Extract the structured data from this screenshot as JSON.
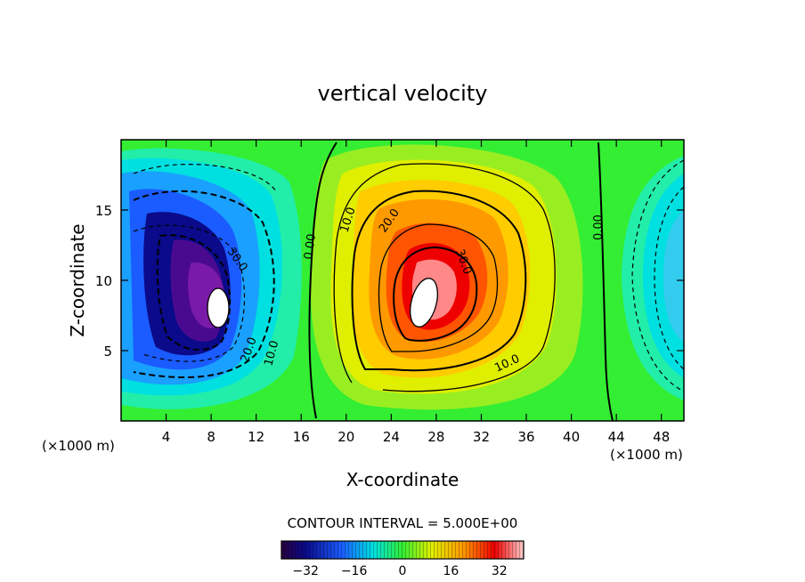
{
  "chart_data": {
    "type": "heatmap",
    "title": "vertical velocity",
    "xlabel": "X-coordinate",
    "ylabel": "Z-coordinate",
    "x_unit_left": "(×1000 m)",
    "x_unit_right": "(×1000 m)",
    "xlim": [
      0,
      50
    ],
    "ylim": [
      0,
      20
    ],
    "x_ticks": [
      4,
      8,
      12,
      16,
      20,
      24,
      28,
      32,
      36,
      40,
      44,
      48
    ],
    "y_ticks": [
      5,
      10,
      15
    ],
    "contour_interval_text": "CONTOUR INTERVAL = 5.000E+00",
    "colorbar": {
      "range": [
        -40,
        40
      ],
      "ticks": [
        -32,
        -16,
        0,
        16,
        32
      ],
      "tick_labels": [
        "−32",
        "−16",
        "0",
        "16",
        "32"
      ]
    },
    "contour_labels": [
      "30.0",
      "20.0",
      "10.0",
      "0.00",
      "10.0",
      "20.0",
      "30.0",
      "10.0",
      "0.00"
    ],
    "features": [
      {
        "sign": "negative",
        "x": 8.5,
        "z": 8.5,
        "peak": -40
      },
      {
        "sign": "positive",
        "x": 27,
        "z": 8.5,
        "peak": 40
      },
      {
        "sign": "negative",
        "x": 52,
        "z": 10,
        "peak": -20
      }
    ]
  }
}
